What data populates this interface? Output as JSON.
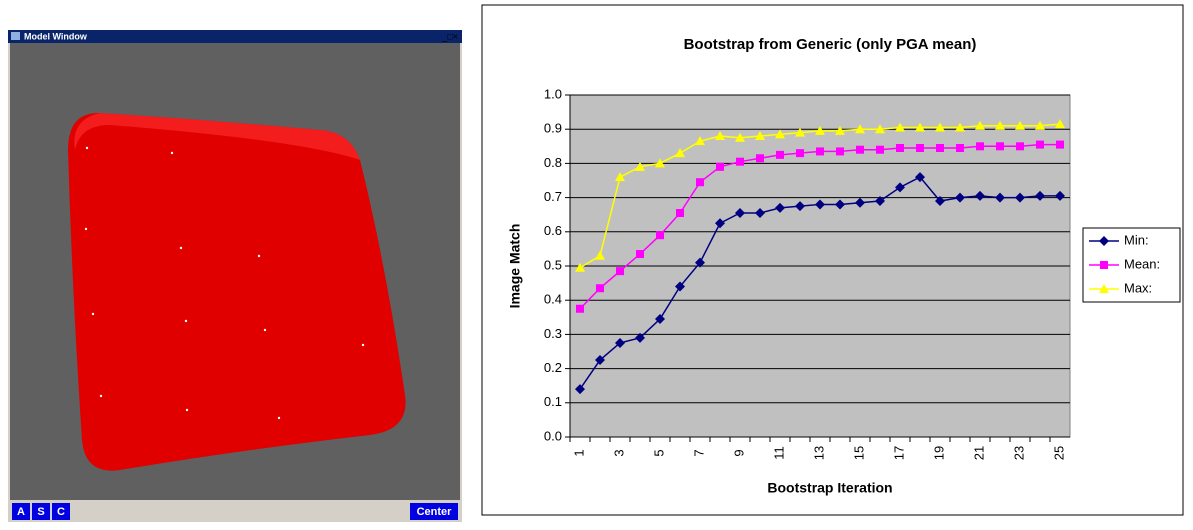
{
  "window": {
    "title": "Model Window",
    "controls": "_□×",
    "buttons": [
      "A",
      "S",
      "C"
    ],
    "center_button": "Center"
  },
  "chart_data": {
    "type": "line",
    "title": "Bootstrap from Generic (only PGA mean)",
    "x_label": "Bootstrap Iteration",
    "y_label": "Image Match",
    "categories": [
      "1",
      null,
      "3",
      null,
      "5",
      null,
      "7",
      null,
      "9",
      null,
      "11",
      null,
      "13",
      null,
      "15",
      null,
      "17",
      null,
      "19",
      null,
      "21",
      null,
      "23",
      null,
      "25"
    ],
    "series": [
      {
        "name": "Min:",
        "color": "#000080",
        "marker": "diamond",
        "values": [
          0.14,
          0.225,
          0.275,
          0.29,
          0.345,
          0.44,
          0.51,
          0.625,
          0.655,
          0.655,
          0.67,
          0.675,
          0.68,
          0.68,
          0.685,
          0.69,
          0.73,
          0.76,
          0.69,
          0.7,
          0.705,
          0.7,
          0.7,
          0.705,
          0.705
        ]
      },
      {
        "name": "Mean:",
        "color": "#ff00ff",
        "marker": "square",
        "values": [
          0.375,
          0.435,
          0.485,
          0.535,
          0.59,
          0.655,
          0.745,
          0.79,
          0.805,
          0.815,
          0.825,
          0.83,
          0.835,
          0.835,
          0.84,
          0.84,
          0.845,
          0.845,
          0.845,
          0.845,
          0.85,
          0.85,
          0.85,
          0.855,
          0.855
        ]
      },
      {
        "name": "Max:",
        "color": "#ffff00",
        "marker": "triangle",
        "values": [
          0.495,
          0.53,
          0.76,
          0.79,
          0.8,
          0.83,
          0.865,
          0.88,
          0.875,
          0.88,
          0.885,
          0.89,
          0.895,
          0.895,
          0.9,
          0.9,
          0.905,
          0.905,
          0.905,
          0.905,
          0.91,
          0.91,
          0.91,
          0.91,
          0.915
        ]
      }
    ],
    "ylim": [
      0,
      1
    ],
    "yticks": [
      {
        "value": 0,
        "label": "0.0"
      },
      0.1,
      0.2,
      0.3,
      0.4,
      0.5,
      0.6,
      0.7,
      0.8,
      0.9,
      {
        "value": 1,
        "label": "1.0"
      }
    ],
    "grid": true,
    "plot_background": "#c0c0c0",
    "legend": "right"
  }
}
